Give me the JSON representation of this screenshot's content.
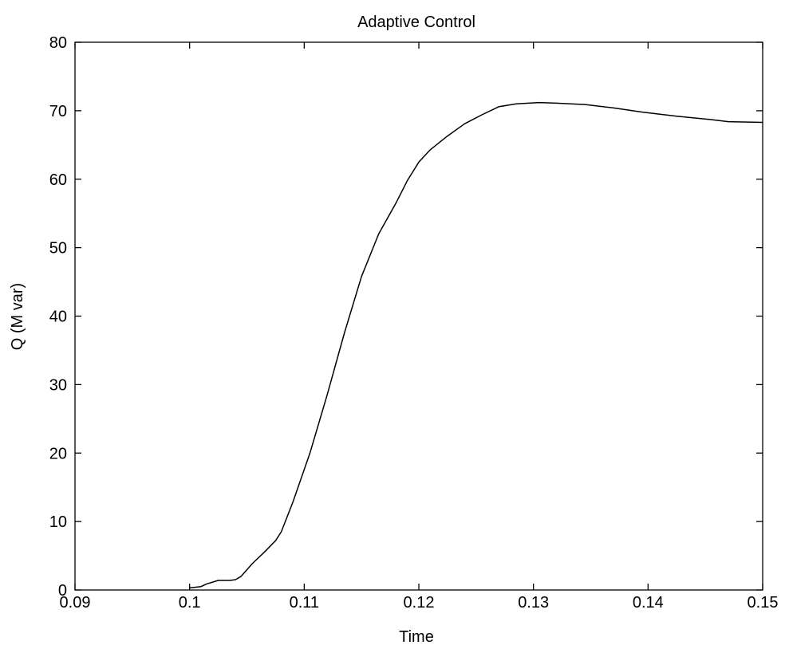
{
  "chart_data": {
    "type": "line",
    "title": "Adaptive Control",
    "xlabel": "Time",
    "ylabel": "Q (M var)",
    "xlim": [
      0.09,
      0.15
    ],
    "ylim": [
      0,
      80
    ],
    "xticks": [
      0.09,
      0.1,
      0.11,
      0.12,
      0.13,
      0.14,
      0.15
    ],
    "xtick_labels": [
      "0.09",
      "0.1",
      "0.11",
      "0.12",
      "0.13",
      "0.14",
      "0.15"
    ],
    "yticks": [
      0,
      10,
      20,
      30,
      40,
      50,
      60,
      70,
      80
    ],
    "ytick_labels": [
      "0",
      "10",
      "20",
      "30",
      "40",
      "50",
      "60",
      "70",
      "80"
    ],
    "grid": false,
    "line_color": "#000000",
    "series": [
      {
        "x": [
          0.1,
          0.101,
          0.1015,
          0.1025,
          0.1035,
          0.104,
          0.1045,
          0.1055,
          0.1065,
          0.1075,
          0.108,
          0.109,
          0.1105,
          0.112,
          0.1135,
          0.115,
          0.1165,
          0.118,
          0.119,
          0.12,
          0.121,
          0.1225,
          0.124,
          0.1255,
          0.127,
          0.1285,
          0.1305,
          0.132,
          0.1345,
          0.137,
          0.1395,
          0.1425,
          0.1455,
          0.147,
          0.15
        ],
        "y": [
          0.3,
          0.5,
          0.9,
          1.4,
          1.4,
          1.5,
          2.0,
          3.9,
          5.5,
          7.2,
          8.5,
          12.8,
          20.0,
          28.5,
          37.5,
          45.8,
          52.0,
          56.5,
          59.8,
          62.5,
          64.3,
          66.3,
          68.1,
          69.4,
          70.6,
          71.0,
          71.2,
          71.1,
          70.9,
          70.4,
          69.8,
          69.2,
          68.7,
          68.4,
          68.3
        ]
      }
    ]
  }
}
